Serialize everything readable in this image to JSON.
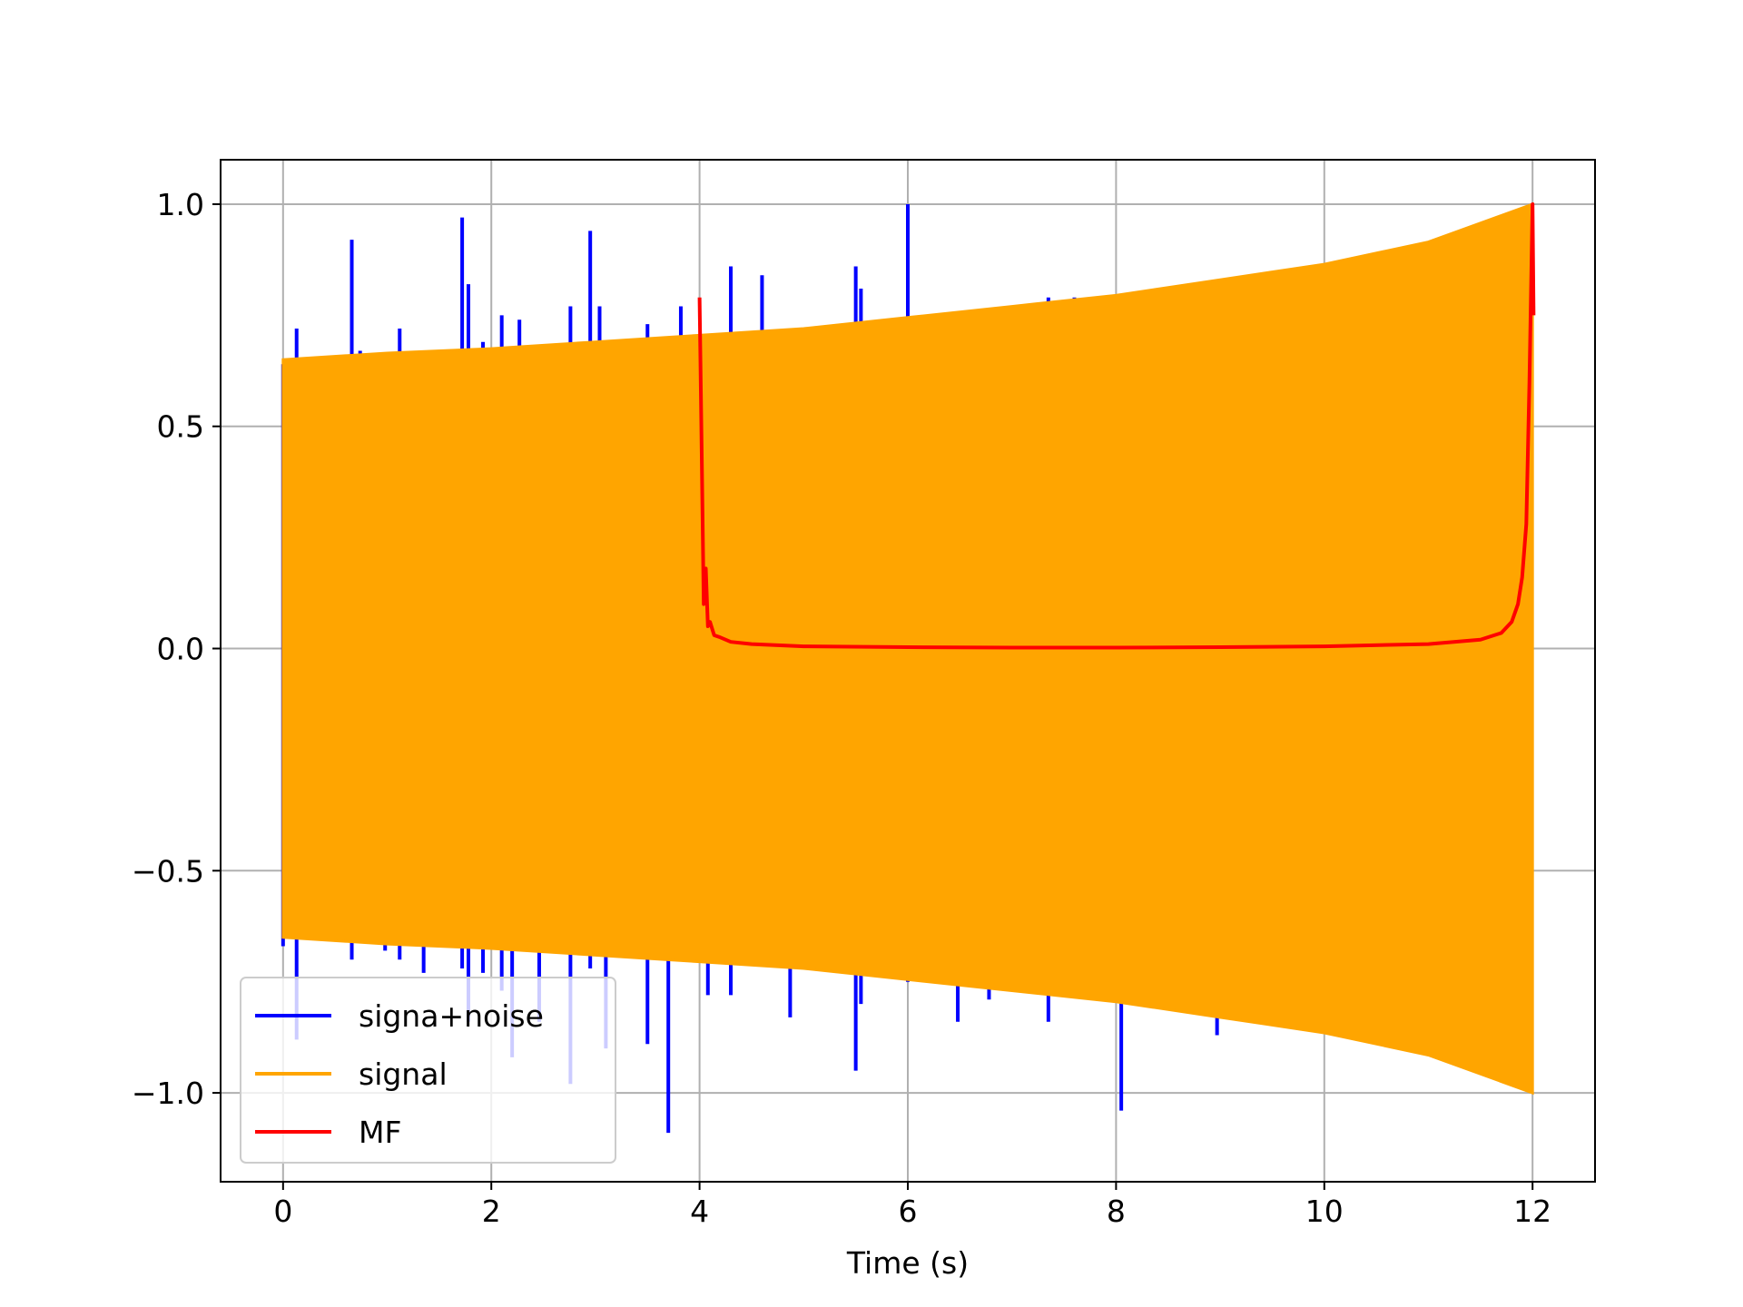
{
  "chart_data": {
    "type": "line",
    "title": "",
    "xlabel": "Time (s)",
    "ylabel": "",
    "xlim": [
      -0.6,
      12.6
    ],
    "ylim": [
      -1.2,
      1.1
    ],
    "grid": true,
    "xticks": [
      0,
      2,
      4,
      6,
      8,
      10,
      12
    ],
    "xtick_labels": [
      "0",
      "2",
      "4",
      "6",
      "8",
      "10",
      "12"
    ],
    "yticks": [
      1.0,
      0.5,
      0.0,
      -0.5,
      -1.0
    ],
    "ytick_labels": [
      "1.0",
      "0.5",
      "0.0",
      "−0.5",
      "−1.0"
    ],
    "legend": {
      "position": "lower-left",
      "entries": [
        "signa+noise",
        "signal",
        "MF"
      ]
    },
    "series": [
      {
        "name": "signa+noise",
        "color": "#0000ff",
        "description_kind": "noise spikes",
        "spikes": [
          [
            0.0,
            0.64
          ],
          [
            0.0,
            -0.67
          ],
          [
            0.13,
            0.72
          ],
          [
            0.13,
            -0.88
          ],
          [
            0.66,
            0.92
          ],
          [
            0.66,
            -0.7
          ],
          [
            0.74,
            0.67
          ],
          [
            0.98,
            0.65
          ],
          [
            0.98,
            -0.68
          ],
          [
            1.12,
            0.72
          ],
          [
            1.12,
            -0.7
          ],
          [
            1.35,
            -0.73
          ],
          [
            1.72,
            0.97
          ],
          [
            1.72,
            -0.72
          ],
          [
            1.78,
            0.82
          ],
          [
            1.78,
            -0.84
          ],
          [
            1.92,
            0.69
          ],
          [
            1.92,
            -0.73
          ],
          [
            2.1,
            0.75
          ],
          [
            2.1,
            -0.77
          ],
          [
            2.2,
            -0.92
          ],
          [
            2.27,
            0.74
          ],
          [
            2.46,
            -0.84
          ],
          [
            2.76,
            0.77
          ],
          [
            2.76,
            -0.98
          ],
          [
            2.95,
            0.94
          ],
          [
            2.95,
            -0.72
          ],
          [
            3.04,
            0.77
          ],
          [
            3.1,
            -0.9
          ],
          [
            3.5,
            0.73
          ],
          [
            3.5,
            -0.89
          ],
          [
            3.7,
            -1.09
          ],
          [
            3.82,
            0.77
          ],
          [
            4.08,
            -0.78
          ],
          [
            4.3,
            0.86
          ],
          [
            4.3,
            -0.78
          ],
          [
            4.6,
            0.84
          ],
          [
            4.87,
            -0.83
          ],
          [
            5.5,
            0.86
          ],
          [
            5.5,
            -0.95
          ],
          [
            5.55,
            0.81
          ],
          [
            5.55,
            -0.8
          ],
          [
            6.0,
            1.0
          ],
          [
            6.0,
            -0.75
          ],
          [
            6.48,
            -0.84
          ],
          [
            6.78,
            -0.79
          ],
          [
            7.35,
            0.79
          ],
          [
            7.35,
            -0.84
          ],
          [
            7.6,
            0.79
          ],
          [
            8.05,
            -1.04
          ],
          [
            8.55,
            -0.81
          ],
          [
            8.97,
            -0.87
          ],
          [
            9.05,
            -0.83
          ]
        ]
      },
      {
        "name": "signal",
        "color": "#ffa500",
        "description_kind": "chirp envelope",
        "envelope": {
          "t": [
            0.0,
            1.0,
            2.0,
            3.0,
            4.0,
            5.0,
            6.0,
            7.0,
            8.0,
            9.0,
            10.0,
            11.0,
            12.0
          ],
          "amplitude": [
            0.65,
            0.665,
            0.675,
            0.69,
            0.705,
            0.72,
            0.745,
            0.77,
            0.795,
            0.83,
            0.865,
            0.915,
            1.0
          ]
        }
      },
      {
        "name": "MF",
        "color": "#ff0000",
        "description_kind": "matched filter output",
        "x": [
          4.0,
          4.02,
          4.04,
          4.06,
          4.08,
          4.1,
          4.14,
          4.2,
          4.3,
          4.5,
          5.0,
          6.0,
          7.0,
          8.0,
          9.0,
          10.0,
          11.0,
          11.5,
          11.7,
          11.8,
          11.86,
          11.9,
          11.94,
          11.97,
          12.0,
          12.01
        ],
        "y": [
          0.79,
          0.45,
          0.1,
          0.18,
          0.05,
          0.06,
          0.03,
          0.025,
          0.015,
          0.01,
          0.005,
          0.003,
          0.002,
          0.002,
          0.003,
          0.005,
          0.01,
          0.02,
          0.035,
          0.06,
          0.1,
          0.16,
          0.28,
          0.6,
          1.0,
          0.75
        ]
      }
    ]
  }
}
